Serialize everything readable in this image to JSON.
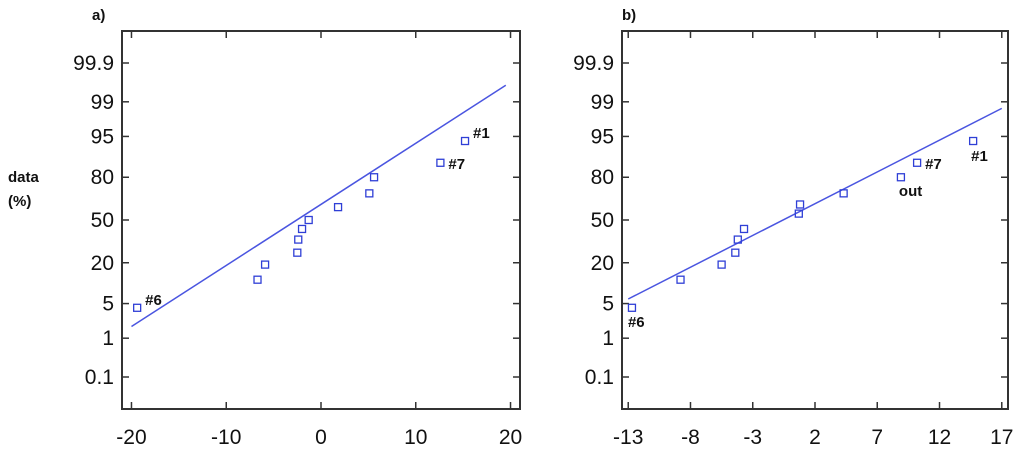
{
  "chart_data": [
    {
      "type": "scatter",
      "panel_label": "a)",
      "ylabel": "data",
      "ylabel_unit": "(%)",
      "xlim": [
        -21,
        21
      ],
      "x_ticks": [
        -20,
        -10,
        0,
        10,
        20
      ],
      "x_tick_labels": [
        "-20",
        "-10",
        "0",
        "10",
        "20"
      ],
      "y_scale": "normal-probability",
      "y_ticks": [
        0.1,
        1,
        5,
        20,
        50,
        80,
        95,
        99,
        99.9
      ],
      "y_tick_labels": [
        "0.1",
        "1",
        "5",
        "20",
        "50",
        "80",
        "95",
        "99",
        "99.9"
      ],
      "points": [
        {
          "x": -19.4,
          "y": 4.2,
          "label": "#6"
        },
        {
          "x": -6.7,
          "y": 12
        },
        {
          "x": -5.9,
          "y": 19
        },
        {
          "x": -2.5,
          "y": 26
        },
        {
          "x": -2.4,
          "y": 35
        },
        {
          "x": -2.0,
          "y": 43
        },
        {
          "x": -1.3,
          "y": 50
        },
        {
          "x": 1.8,
          "y": 60
        },
        {
          "x": 5.1,
          "y": 70
        },
        {
          "x": 5.6,
          "y": 80
        },
        {
          "x": 12.6,
          "y": 87,
          "label": "#7"
        },
        {
          "x": 15.2,
          "y": 94,
          "label": "#1"
        }
      ],
      "fit_line": {
        "x": [
          -20,
          19.5
        ],
        "y": [
          1.8,
          99.6
        ]
      },
      "marker_color": "#2f3fd6",
      "line_color": "#4a55e0"
    },
    {
      "type": "scatter",
      "panel_label": "b)",
      "xlim": [
        -13.5,
        17.5
      ],
      "x_ticks": [
        -13,
        -8,
        -3,
        2,
        7,
        12,
        17
      ],
      "x_tick_labels": [
        "-13",
        "-8",
        "-3",
        "2",
        "7",
        "12",
        "17"
      ],
      "y_scale": "normal-probability",
      "y_ticks": [
        0.1,
        1,
        5,
        20,
        50,
        80,
        95,
        99,
        99.9
      ],
      "y_tick_labels": [
        "0.1",
        "1",
        "5",
        "20",
        "50",
        "80",
        "95",
        "99",
        "99.9"
      ],
      "points": [
        {
          "x": -12.7,
          "y": 4.2,
          "label": "#6"
        },
        {
          "x": -8.8,
          "y": 12
        },
        {
          "x": -5.5,
          "y": 19
        },
        {
          "x": -4.4,
          "y": 26
        },
        {
          "x": -4.2,
          "y": 35
        },
        {
          "x": -3.7,
          "y": 43
        },
        {
          "x": 0.7,
          "y": 55
        },
        {
          "x": 0.8,
          "y": 62
        },
        {
          "x": 4.3,
          "y": 70
        },
        {
          "x": 8.9,
          "y": 80,
          "label": "out"
        },
        {
          "x": 10.2,
          "y": 87,
          "label": "#7"
        },
        {
          "x": 14.7,
          "y": 94,
          "label": "#1"
        }
      ],
      "fit_line": {
        "x": [
          -13,
          17
        ],
        "y": [
          6,
          98.6
        ]
      },
      "marker_color": "#2f3fd6",
      "line_color": "#4a55e0"
    }
  ]
}
